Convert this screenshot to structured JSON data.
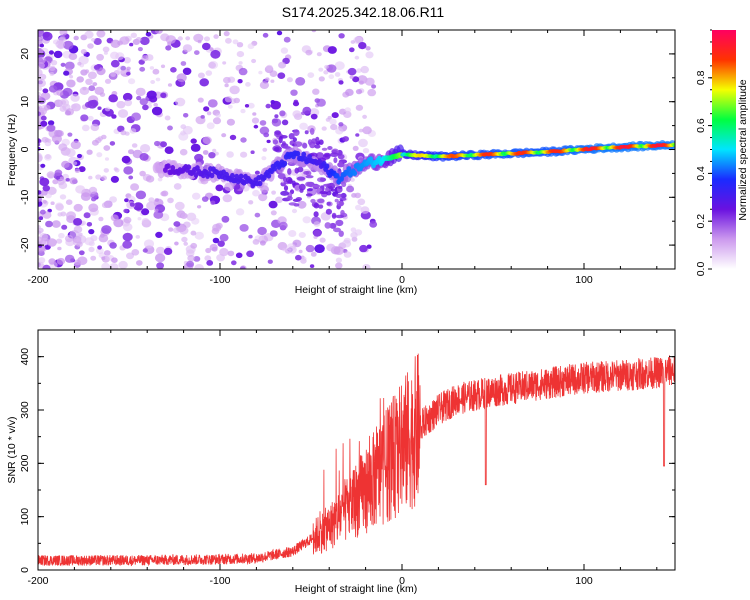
{
  "title": "S174.2025.342.18.06.R11",
  "chart_data": [
    {
      "type": "heatmap",
      "name": "spectrogram",
      "xlabel": "Height of straight line (km)",
      "ylabel": "Frequency (Hz)",
      "xlim": [
        -200,
        150
      ],
      "ylim": [
        -25,
        25
      ],
      "xticks": [
        -200,
        -100,
        0,
        100
      ],
      "xtick_labels": [
        "-200",
        "-100",
        "0",
        "100"
      ],
      "yticks": [
        -20,
        -10,
        0,
        10,
        20
      ],
      "ytick_labels": [
        "-20",
        "-10",
        "0",
        "10",
        "20"
      ],
      "colorbar": {
        "label": "Normalized spectral amplitude",
        "range": [
          0,
          1
        ],
        "ticks": [
          0.0,
          0.2,
          0.4,
          0.6,
          0.8
        ],
        "tick_labels": [
          "0.0",
          "0.2",
          "0.4",
          "0.6",
          "0.8"
        ],
        "colormap": [
          "#ffffff",
          "#cc99ee",
          "#6a11e0",
          "#1a2bff",
          "#00e5ff",
          "#00ff40",
          "#f5ff00",
          "#ff3300",
          "#ff0060"
        ]
      },
      "ridge": {
        "description_points_x": [
          -130,
          -100,
          -80,
          -60,
          -45,
          -35,
          -20,
          -10,
          0,
          20,
          50,
          80,
          110,
          150
        ],
        "description_points_freq": [
          -4,
          -5,
          -7,
          -1,
          -3,
          -6,
          -3,
          -2,
          -1,
          -1.5,
          -1.0,
          -0.5,
          0.3,
          1.0
        ],
        "peak_amplitude": [
          0.25,
          0.3,
          0.3,
          0.35,
          0.3,
          0.4,
          0.45,
          0.5,
          0.7,
          0.85,
          0.9,
          0.9,
          0.95,
          0.95
        ]
      }
    },
    {
      "type": "line",
      "name": "snr",
      "xlabel": "Height of straight line (km)",
      "ylabel": "SNR (10 * v/v)",
      "xlim": [
        -200,
        150
      ],
      "ylim": [
        0,
        450
      ],
      "xticks": [
        -200,
        -100,
        0,
        100
      ],
      "xtick_labels": [
        "-200",
        "-100",
        "0",
        "100"
      ],
      "yticks": [
        0,
        100,
        200,
        300,
        400
      ],
      "ytick_labels": [
        "0",
        "100",
        "200",
        "300",
        "400"
      ],
      "color": "#ee3333",
      "series_trend": {
        "x": [
          -200,
          -150,
          -100,
          -80,
          -60,
          -40,
          -20,
          -10,
          0,
          10,
          20,
          30,
          50,
          80,
          100,
          120,
          140,
          150
        ],
        "y": [
          18,
          18,
          20,
          22,
          35,
          80,
          150,
          190,
          230,
          270,
          300,
          320,
          335,
          350,
          360,
          365,
          370,
          375
        ]
      }
    }
  ]
}
